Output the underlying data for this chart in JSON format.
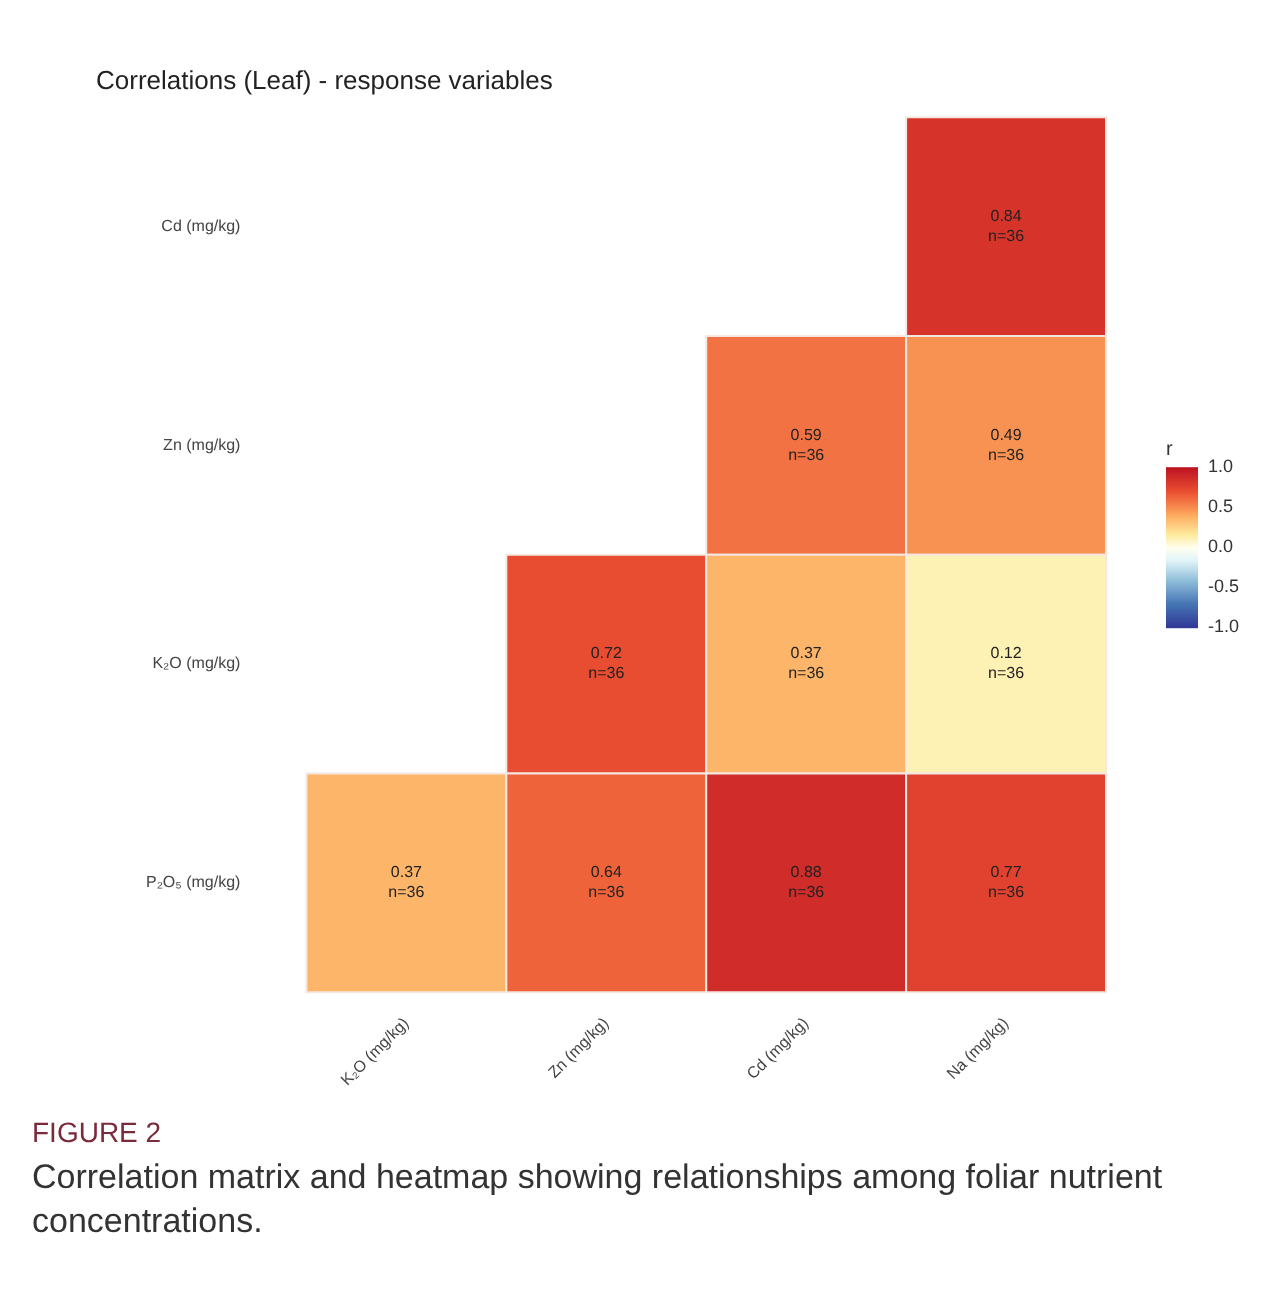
{
  "chart_data": {
    "type": "heatmap",
    "title": "Correlations (Leaf) - response variables",
    "clabel": "r",
    "categories": [
      "K₂O (mg/kg)",
      "Zn (mg/kg)",
      "Cd (mg/kg)",
      "Na (mg/kg)"
    ],
    "y_categories": [
      "Cd (mg/kg)",
      "Zn (mg/kg)",
      "K₂O (mg/kg)",
      "P₂O₅ (mg/kg)"
    ],
    "cells": [
      [
        null,
        null,
        null,
        0.84
      ],
      [
        null,
        null,
        0.59,
        0.49
      ],
      [
        null,
        0.72,
        0.37,
        0.12
      ],
      [
        0.37,
        0.64,
        0.88,
        0.77
      ]
    ],
    "cell_labels": [
      [
        null,
        null,
        null,
        "0.84\nn=36"
      ],
      [
        null,
        null,
        "0.59\nn=36",
        "0.49\nn=36"
      ],
      [
        null,
        "0.72\nn=36",
        "0.37\nn=36",
        "0.12\nn=36"
      ],
      [
        "0.37\nn=36",
        "0.64\nn=36",
        "0.88\nn=36",
        "0.77\nn=36"
      ]
    ],
    "clim": [
      -1,
      1
    ],
    "cticks": [
      {
        "value": 1,
        "label": "1.0"
      },
      {
        "value": 0.5,
        "label": "0.5"
      },
      {
        "value": 0,
        "label": "0.0"
      },
      {
        "value": -0.5,
        "label": "-0.5"
      },
      {
        "value": -1,
        "label": "-1.0"
      }
    ],
    "annotations": [
      "FIGURE 2",
      "Correlation matrix and heatmap showing relationships among foliar nutrient concentrations."
    ]
  }
}
